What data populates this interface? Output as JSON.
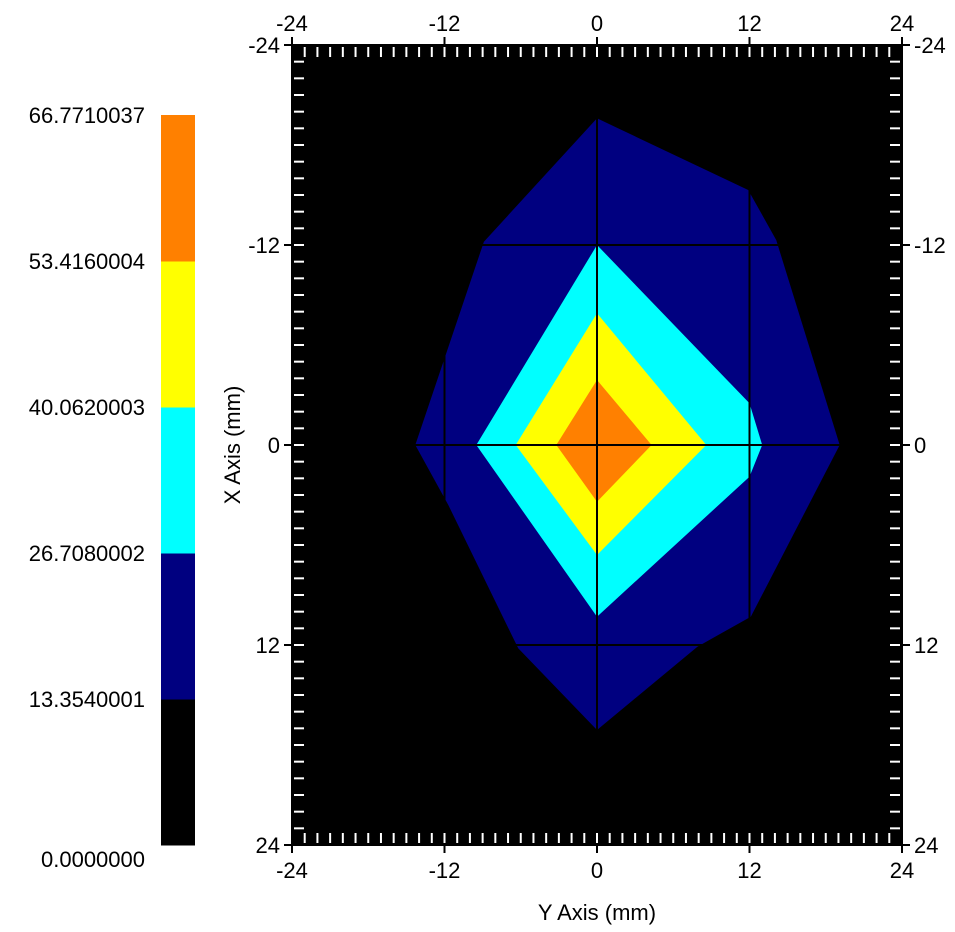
{
  "chart_data": {
    "type": "heatmap",
    "title": "",
    "xlabel": "Y Axis (mm)",
    "ylabel": "X Axis (mm)",
    "xlim": [
      -24,
      24
    ],
    "ylim": [
      -24,
      24
    ],
    "y_inverted": true,
    "xticks": [
      -24,
      -12,
      0,
      12,
      24
    ],
    "yticks": [
      -24,
      -12,
      0,
      12,
      24
    ],
    "xtick_labels": [
      "-24",
      "-12",
      "0",
      "12",
      "24"
    ],
    "ytick_labels": [
      "-24",
      "-12",
      "0",
      "12",
      "24"
    ],
    "grid": true,
    "background_color": "#000000",
    "grid_color": "#000000",
    "colorbar": {
      "levels": [
        0.0,
        13.354,
        26.708,
        40.062,
        53.416,
        66.771
      ],
      "labels": [
        "0.0000000",
        "13.3540001",
        "26.7080002",
        "40.0620003",
        "53.4160004",
        "66.7710037"
      ],
      "colors": [
        "#000000",
        "#000080",
        "#00ffff",
        "#ffff00",
        "#ff8000"
      ]
    },
    "contours": [
      {
        "level_index": 1,
        "color": "#000080",
        "points": [
          [
            0,
            -19.6
          ],
          [
            11.9,
            -15.3
          ],
          [
            14.1,
            -12.3
          ],
          [
            19.1,
            0
          ],
          [
            12.1,
            10.3
          ],
          [
            7.9,
            12.1
          ],
          [
            0,
            17.1
          ],
          [
            -6.2,
            12.2
          ],
          [
            -11.7,
            3.6
          ],
          [
            -14.3,
            0
          ],
          [
            -8.9,
            -12.2
          ]
        ]
      },
      {
        "level_index": 2,
        "color": "#00ffff",
        "points": [
          [
            0,
            -12
          ],
          [
            12,
            -2.5
          ],
          [
            13,
            0
          ],
          [
            12,
            1.9
          ],
          [
            0,
            10.3
          ],
          [
            -9.5,
            0
          ]
        ]
      },
      {
        "level_index": 3,
        "color": "#ffff00",
        "points": [
          [
            0,
            -7.9
          ],
          [
            8.6,
            0
          ],
          [
            0,
            6.6
          ],
          [
            -6.4,
            0
          ]
        ]
      },
      {
        "level_index": 4,
        "color": "#ff8000",
        "points": [
          [
            0,
            -3.9
          ],
          [
            4.3,
            0
          ],
          [
            0,
            3.4
          ],
          [
            -3.2,
            0
          ]
        ]
      }
    ]
  }
}
